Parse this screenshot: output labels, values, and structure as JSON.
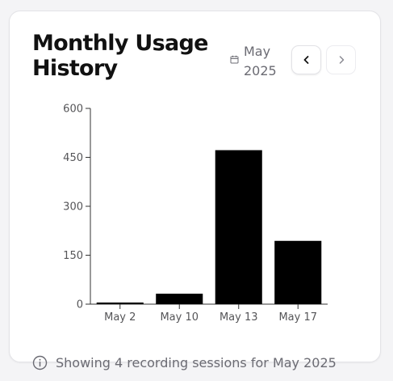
{
  "card": {
    "title": "Monthly Usage History",
    "date_label": "May 2025",
    "footer_text": "Showing 4 recording sessions for May 2025"
  },
  "icons": {
    "date": "calendar-icon",
    "prev": "chevron-left-icon",
    "next": "chevron-right-icon",
    "info": "info-icon"
  },
  "colors": {
    "bar": "#000000",
    "axis": "#333333"
  },
  "chart_data": {
    "type": "bar",
    "categories": [
      "May 2",
      "May 10",
      "May 13",
      "May 17"
    ],
    "values": [
      5,
      32,
      472,
      194
    ],
    "ylim": [
      0,
      600
    ],
    "yticks": [
      0,
      150,
      300,
      450,
      600
    ],
    "title": "",
    "xlabel": "",
    "ylabel": "",
    "grid": false,
    "legend": "none"
  }
}
